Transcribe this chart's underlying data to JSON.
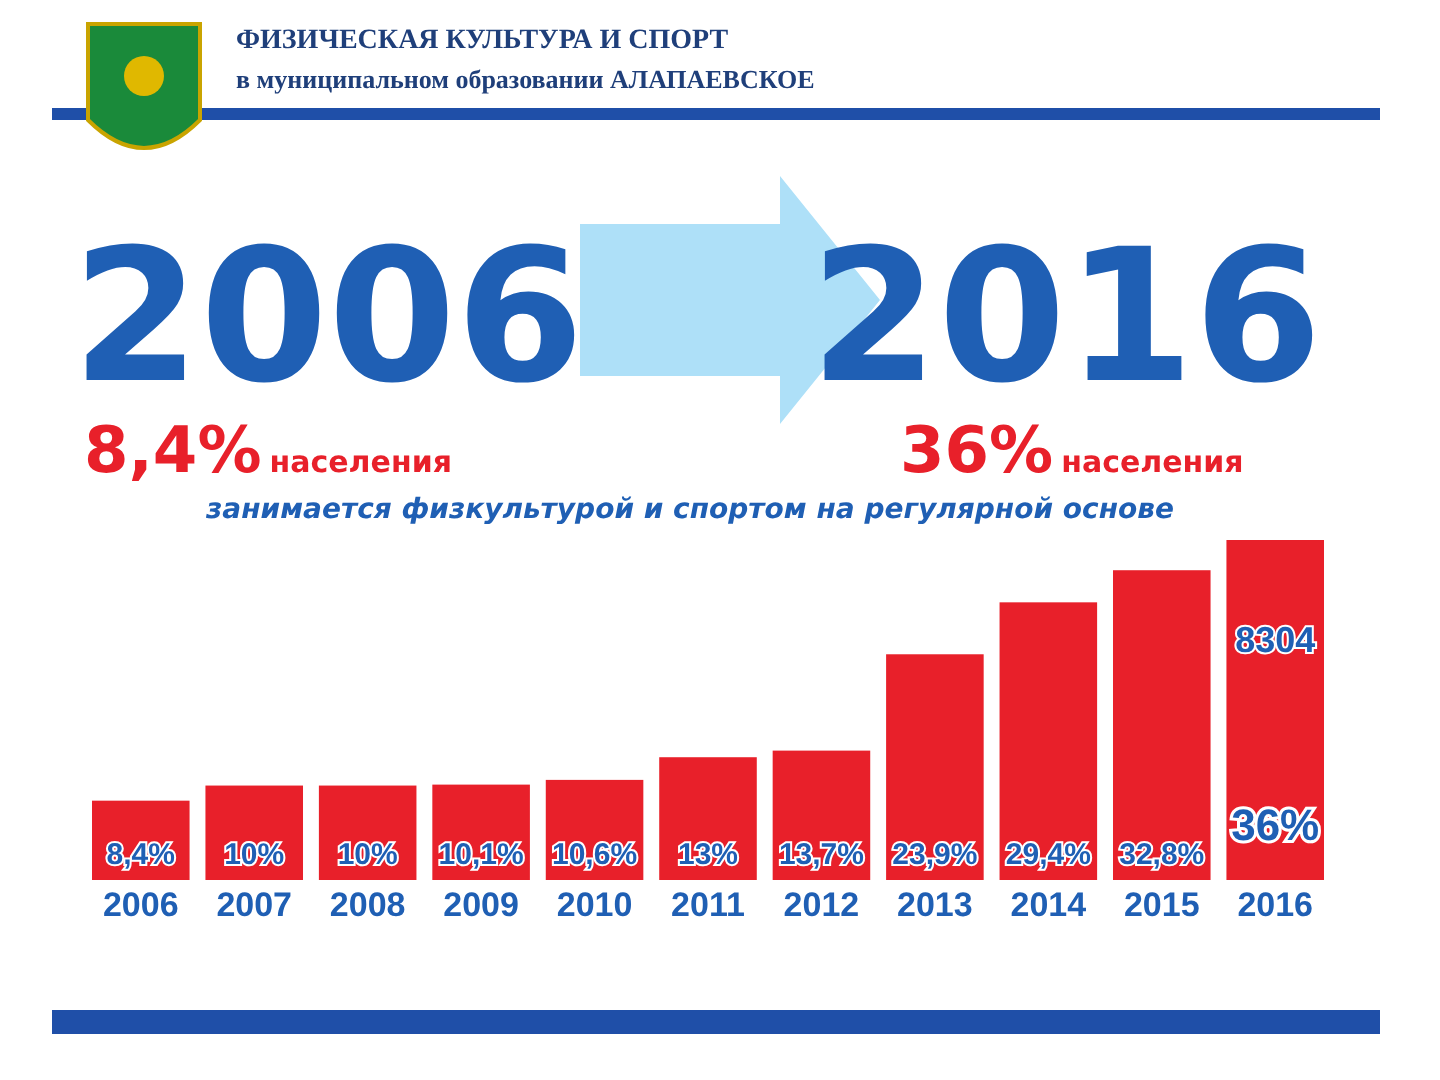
{
  "chart_data": {
    "type": "bar",
    "title": "ФИЗИЧЕСКАЯ КУЛЬТУРА И СПОРТ",
    "subtitle": "в муниципальном образовании АЛАПАЕВСКОЕ",
    "categories": [
      "2006",
      "2007",
      "2008",
      "2009",
      "2010",
      "2011",
      "2012",
      "2013",
      "2014",
      "2015",
      "2016"
    ],
    "values": [
      8.4,
      10,
      10,
      10.1,
      10.6,
      13,
      13.7,
      23.9,
      29.4,
      32.8,
      36
    ],
    "value_labels": [
      "8,4%",
      "10%",
      "10%",
      "10,1%",
      "10,6%",
      "13%",
      "13,7%",
      "23,9%",
      "29,4%",
      "32,8%",
      "36%"
    ],
    "color": "#e8202a",
    "annotations": [
      "2006",
      "2016",
      "8,4%",
      "населения",
      "36%",
      "населения",
      "занимается физкультурой и спортом на регулярной основе",
      "8304"
    ]
  }
}
